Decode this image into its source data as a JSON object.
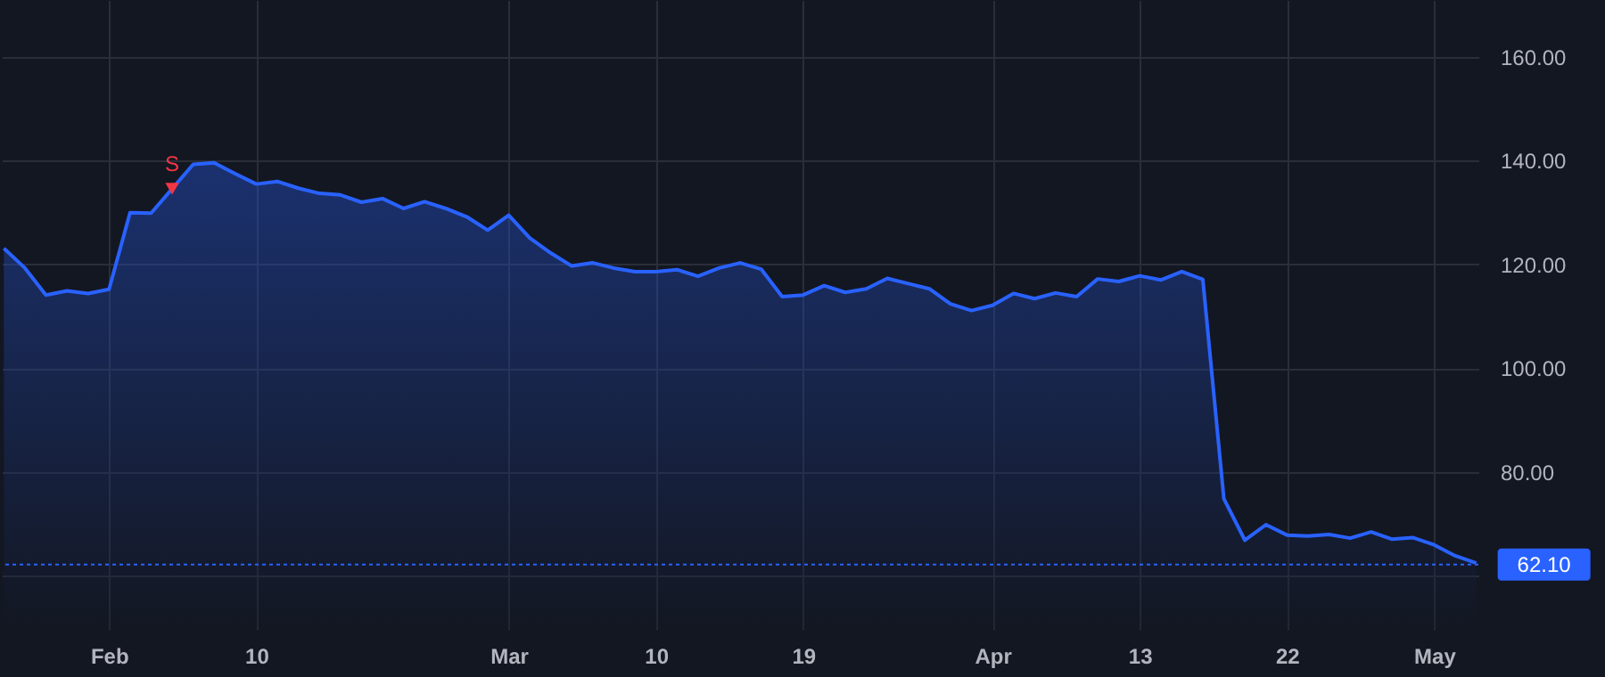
{
  "chart_data": {
    "type": "area",
    "categories": [
      null,
      null,
      null,
      null,
      null,
      "Feb",
      null,
      null,
      null,
      null,
      null,
      null,
      "10",
      null,
      null,
      null,
      null,
      null,
      null,
      null,
      null,
      null,
      null,
      null,
      "Mar",
      null,
      null,
      null,
      null,
      null,
      null,
      "10",
      null,
      null,
      null,
      null,
      null,
      null,
      "19",
      null,
      null,
      null,
      null,
      null,
      null,
      null,
      null,
      "Apr",
      null,
      null,
      null,
      null,
      null,
      null,
      "13",
      null,
      null,
      null,
      null,
      null,
      null,
      "22",
      null,
      null,
      null,
      null,
      null,
      null,
      "May",
      null,
      null
    ],
    "series": [
      {
        "color": "#2962ff",
        "values": [
          123.1,
          119.3,
          114.1,
          114.9,
          114.4,
          115.2,
          130.0,
          129.9,
          134.6,
          139.3,
          139.6,
          137.5,
          135.5,
          136.0,
          134.7,
          133.7,
          133.4,
          132.0,
          132.7,
          130.8,
          132.1,
          130.8,
          129.2,
          126.6,
          129.5,
          125.1,
          122.2,
          119.7,
          120.3,
          119.3,
          118.6,
          118.6,
          119.0,
          117.7,
          119.3,
          120.3,
          119.1,
          113.8,
          114.1,
          115.9,
          114.6,
          115.3,
          117.3,
          116.3,
          115.3,
          112.4,
          111.1,
          112.1,
          114.4,
          113.4,
          114.5,
          113.8,
          117.2,
          116.7,
          117.8,
          117.0,
          118.6,
          117.1,
          74.8,
          66.8,
          69.8,
          67.8,
          67.6,
          67.9,
          67.2,
          68.4,
          67.0,
          67.3,
          65.9,
          63.8,
          62.4
        ]
      }
    ],
    "ylim": [
      49.7,
      171
    ],
    "yticks": [
      {
        "value": 60,
        "label": null
      },
      {
        "value": 80,
        "label": "80.00"
      },
      {
        "value": 100,
        "label": "100.00"
      },
      {
        "value": 120,
        "label": "120.00"
      },
      {
        "value": 140,
        "label": "140.00"
      },
      {
        "value": 160,
        "label": "160.00"
      }
    ],
    "ref_lines": [
      {
        "axis": "y",
        "value": 62.1,
        "label": "62.10",
        "color": "#2962ff",
        "line_style": "dotted"
      }
    ],
    "annotations": [
      {
        "text": "S",
        "y": 134.6
      }
    ],
    "grid": true,
    "line_style": "solid"
  }
}
